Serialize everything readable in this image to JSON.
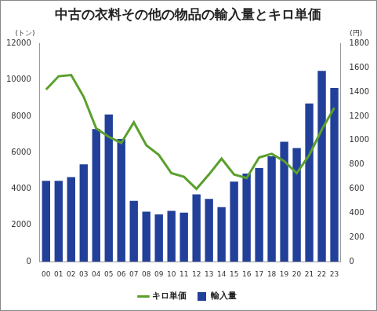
{
  "chart_data": {
    "type": "bar",
    "title": "中古の衣料その他の物品の輸入量とキロ単価",
    "y_label": "(トン)",
    "y2_label": "(円)",
    "categories": [
      "00",
      "01",
      "02",
      "03",
      "04",
      "05",
      "06",
      "07",
      "08",
      "09",
      "10",
      "11",
      "12",
      "13",
      "14",
      "15",
      "16",
      "17",
      "18",
      "19",
      "20",
      "21",
      "22",
      "23"
    ],
    "series": [
      {
        "name": "輸入量",
        "type": "bar",
        "color": "#22409a",
        "values": [
          4450,
          4450,
          4650,
          5350,
          7300,
          8100,
          6750,
          3350,
          2750,
          2600,
          2800,
          2700,
          3700,
          3450,
          3000,
          4400,
          4850,
          5150,
          5800,
          6600,
          6250,
          8700,
          10500,
          9550
        ]
      },
      {
        "name": "キロ単価",
        "type": "line",
        "axis": "y2",
        "color": "#5aa02c",
        "marker": "none",
        "values": [
          1420,
          1530,
          1540,
          1360,
          1100,
          1030,
          980,
          1150,
          960,
          880,
          730,
          700,
          600,
          720,
          850,
          720,
          690,
          860,
          890,
          830,
          730,
          880,
          1090,
          1270
        ]
      }
    ],
    "ylim": [
      0,
      12000
    ],
    "yticks": [
      0,
      2000,
      4000,
      6000,
      8000,
      10000,
      12000
    ],
    "y2lim": [
      0,
      1800
    ],
    "y2ticks": [
      0,
      200,
      400,
      600,
      800,
      1000,
      1200,
      1400,
      1600,
      1800
    ],
    "grid": false,
    "legend": "bottom"
  }
}
